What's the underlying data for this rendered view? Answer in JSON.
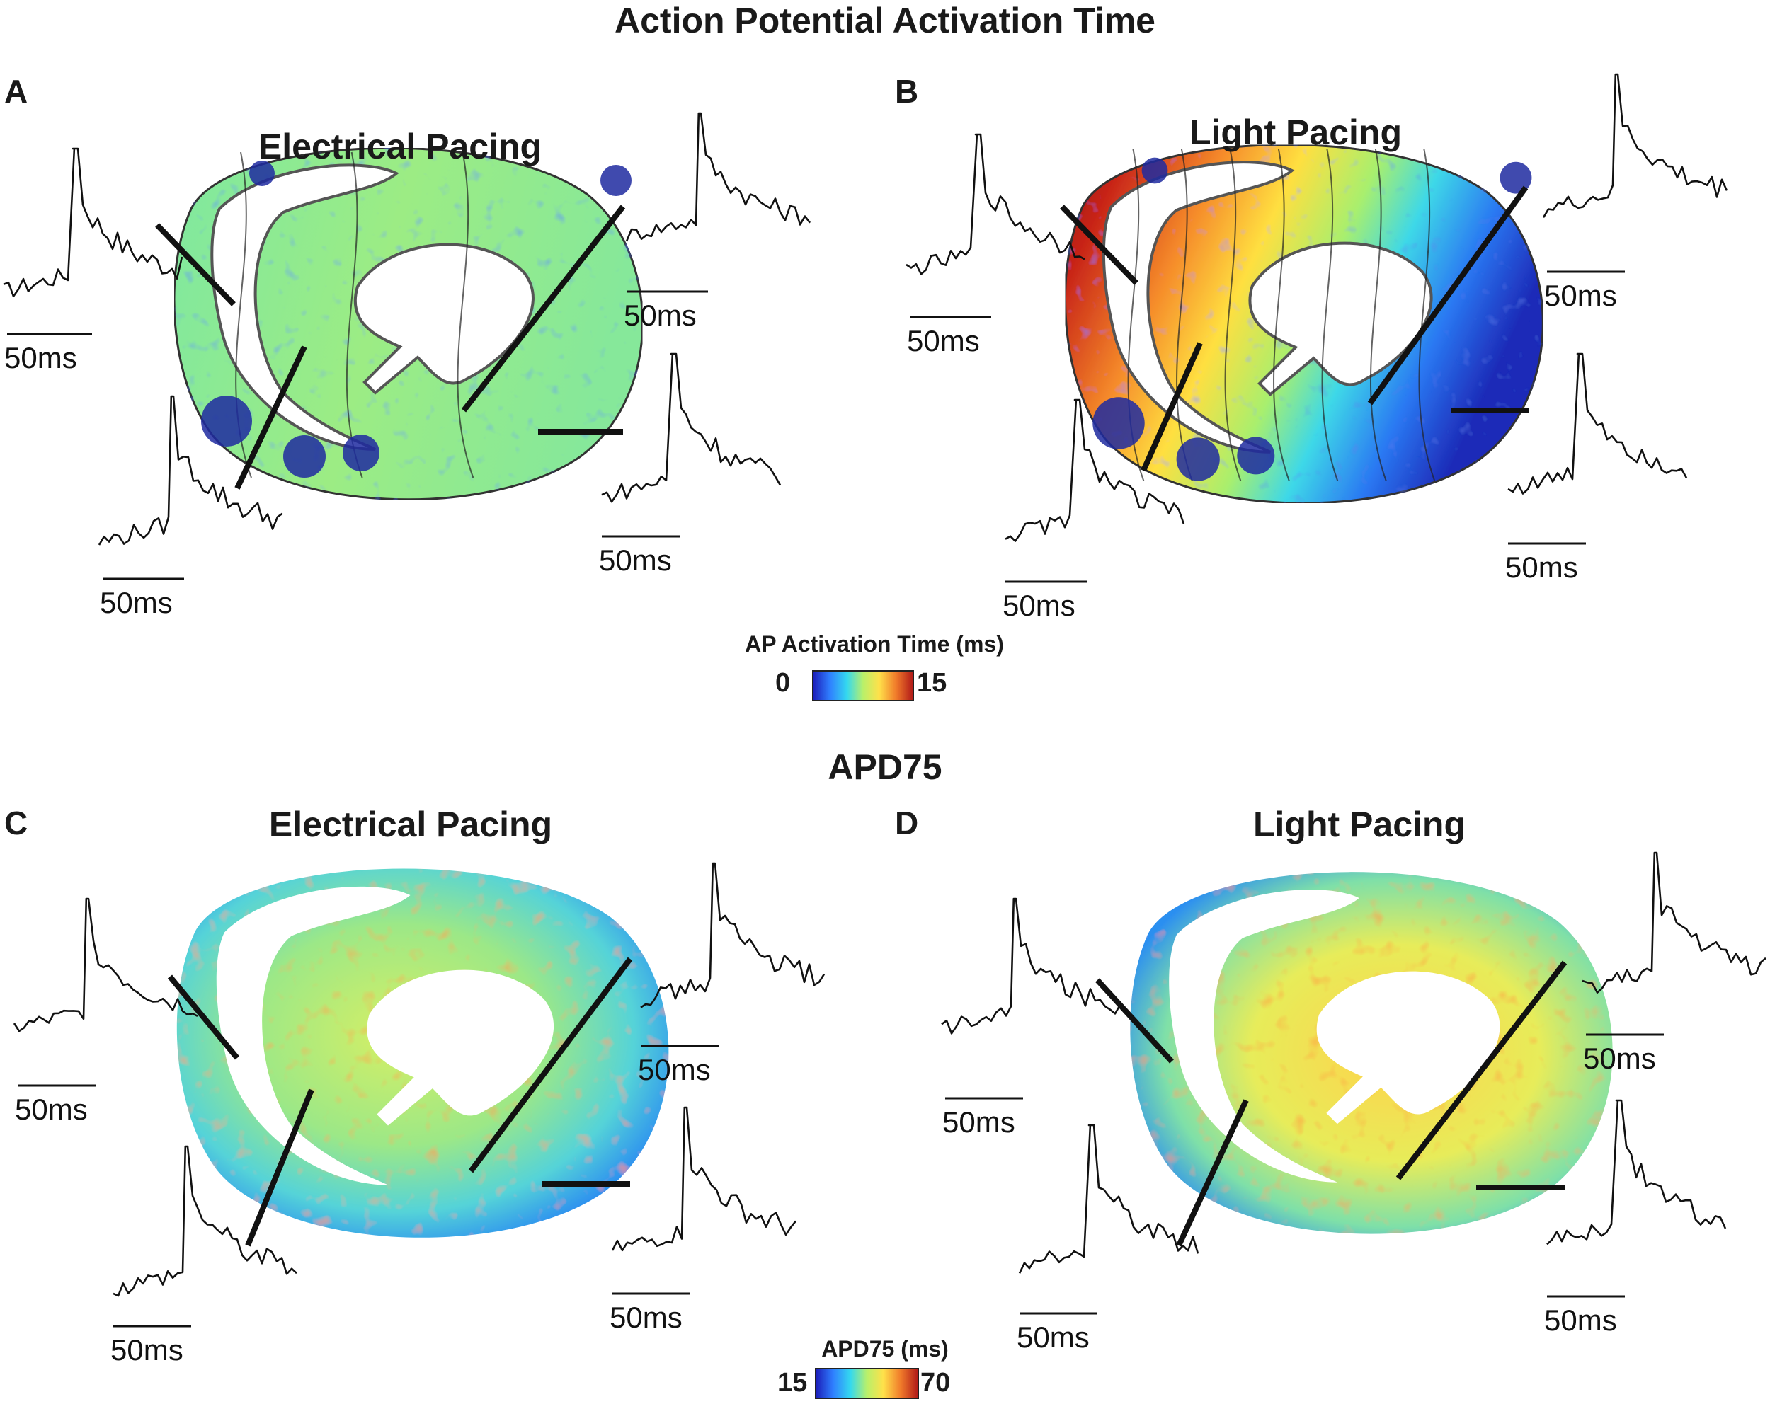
{
  "figure": {
    "sections": [
      {
        "id": "top",
        "title": "Action Potential Activation Time"
      },
      {
        "id": "bottom",
        "title": "APD75"
      }
    ],
    "panels": [
      {
        "letter": "A",
        "title": "Electrical Pacing",
        "map": "activation",
        "pattern": "electrical"
      },
      {
        "letter": "B",
        "title": "Light Pacing",
        "map": "activation",
        "pattern": "light"
      },
      {
        "letter": "C",
        "title": "Electrical Pacing",
        "map": "apd",
        "pattern": "electrical"
      },
      {
        "letter": "D",
        "title": "Light Pacing",
        "map": "apd",
        "pattern": "light"
      }
    ],
    "scale_bar_label": "50ms",
    "colorbars": [
      {
        "title": "AP Activation Time  (ms)",
        "min": "0",
        "max": "15",
        "colors": [
          "#1b1bb8",
          "#2f7fff",
          "#34d9ef",
          "#b9f06a",
          "#ffe14a",
          "#f07a2a",
          "#b01818"
        ]
      },
      {
        "title": "APD75 (ms)",
        "min": "15",
        "max": "70",
        "colors": [
          "#1b1bb8",
          "#2f7fff",
          "#34d9ef",
          "#b9f06a",
          "#ffe14a",
          "#f07a2a",
          "#b01818"
        ]
      }
    ]
  }
}
